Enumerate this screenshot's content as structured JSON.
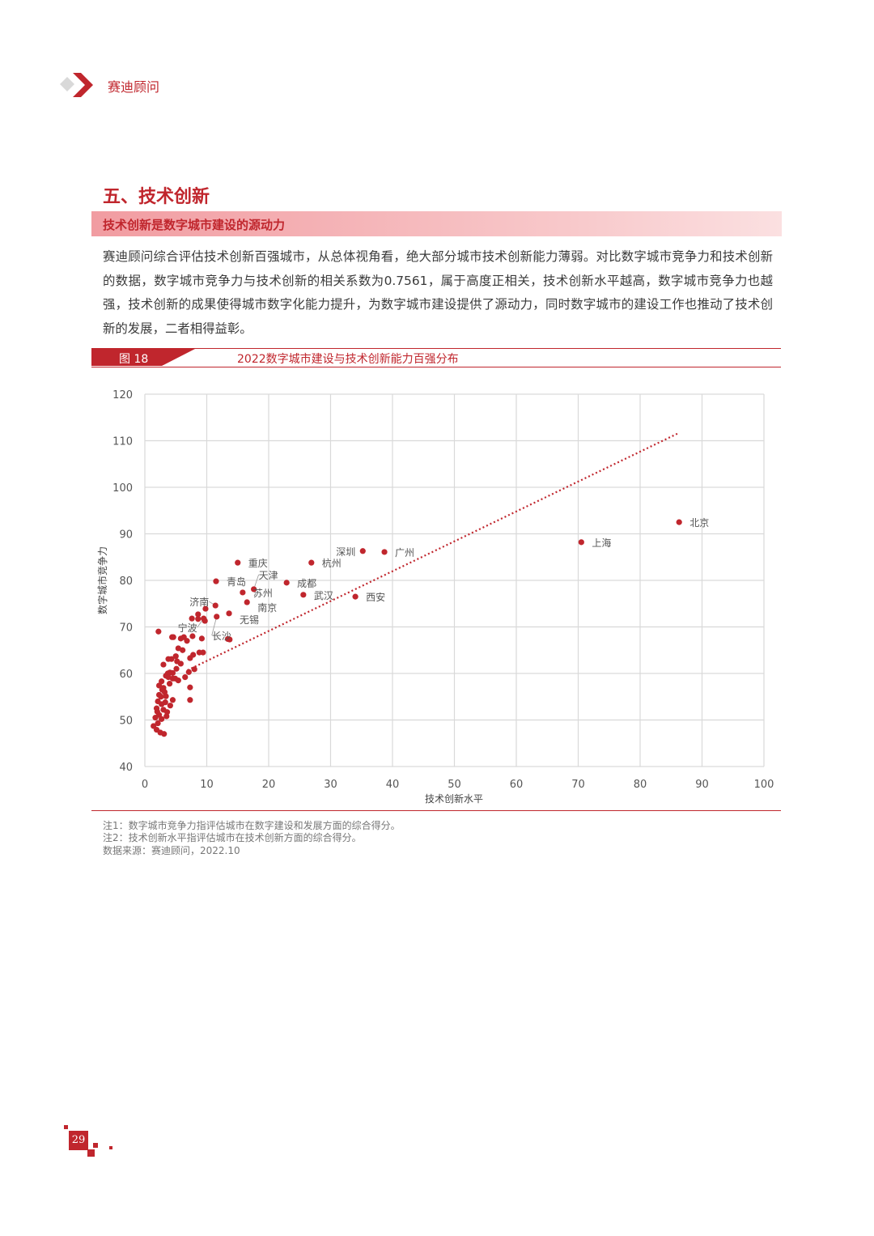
{
  "header": {
    "brand": "赛迪顾问"
  },
  "section": {
    "title": "五、技术创新",
    "subtitle": "技术创新是数字城市建设的源动力",
    "paragraph": "赛迪顾问综合评估技术创新百强城市，从总体视角看，绝大部分城市技术创新能力薄弱。对比数字城市竞争力和技术创新的数据，数字城市竞争力与技术创新的相关系数为0.7561，属于高度正相关，技术创新水平越高，数字城市竞争力也越强，技术创新的成果使得城市数字化能力提升，为数字城市建设提供了源动力，同时数字城市的建设工作也推动了技术创新的发展，二者相得益彰。"
  },
  "figure": {
    "number": "图 18",
    "title": "2022数字城市建设与技术创新能力百强分布"
  },
  "chart_data": {
    "type": "scatter",
    "title": "",
    "xlabel": "技术创新水平",
    "ylabel": "数字城市竞争力",
    "xlim": [
      0,
      100
    ],
    "ylim": [
      40,
      120
    ],
    "xticks": [
      "0",
      "10",
      "20",
      "30",
      "40",
      "50",
      "60",
      "70",
      "80",
      "90",
      "100"
    ],
    "yticks": [
      "40",
      "50",
      "60",
      "70",
      "80",
      "90",
      "100",
      "110",
      "120"
    ],
    "grid": true,
    "color": "#c0262d",
    "trendline": {
      "style": "dotted",
      "x": [
        6.9,
        86.3
      ],
      "y": [
        60.7,
        111.7
      ]
    },
    "labeled_points": [
      {
        "label": "北京",
        "x": 86.3,
        "y": 92.5
      },
      {
        "label": "上海",
        "x": 70.5,
        "y": 88.2
      },
      {
        "label": "深圳",
        "x": 35.2,
        "y": 86.3
      },
      {
        "label": "广州",
        "x": 38.7,
        "y": 86.1
      },
      {
        "label": "杭州",
        "x": 26.9,
        "y": 83.8
      },
      {
        "label": "重庆",
        "x": 15.0,
        "y": 83.8
      },
      {
        "label": "青岛",
        "x": 11.5,
        "y": 79.8
      },
      {
        "label": "成都",
        "x": 22.9,
        "y": 79.5
      },
      {
        "label": "天津",
        "x": 17.6,
        "y": 78.1
      },
      {
        "label": "苏州",
        "x": 15.8,
        "y": 77.4
      },
      {
        "label": "武汉",
        "x": 25.6,
        "y": 76.9
      },
      {
        "label": "西安",
        "x": 34.0,
        "y": 76.5
      },
      {
        "label": "南京",
        "x": 16.5,
        "y": 75.3
      },
      {
        "label": "济南",
        "x": 11.4,
        "y": 74.6
      },
      {
        "label": "无锡",
        "x": 13.6,
        "y": 72.9
      },
      {
        "label": "宁波",
        "x": 9.5,
        "y": 71.8
      },
      {
        "label": "长沙",
        "x": 11.6,
        "y": 72.2
      }
    ],
    "points": [
      [
        2.2,
        69.0
      ],
      [
        4.6,
        67.8
      ],
      [
        5.8,
        67.5
      ],
      [
        6.3,
        67.8
      ],
      [
        6.8,
        67.0
      ],
      [
        7.7,
        68.0
      ],
      [
        9.2,
        67.5
      ],
      [
        5.4,
        65.4
      ],
      [
        6.1,
        65.0
      ],
      [
        8.8,
        64.5
      ],
      [
        9.4,
        64.5
      ],
      [
        7.8,
        64.0
      ],
      [
        7.3,
        63.3
      ],
      [
        3.8,
        63.1
      ],
      [
        4.3,
        63.1
      ],
      [
        5.0,
        63.7
      ],
      [
        5.2,
        62.6
      ],
      [
        5.8,
        62.1
      ],
      [
        3.0,
        61.9
      ],
      [
        8.0,
        60.9
      ],
      [
        7.1,
        60.3
      ],
      [
        3.7,
        60.0
      ],
      [
        4.05,
        60.2
      ],
      [
        4.5,
        60.1
      ],
      [
        3.4,
        59.5
      ],
      [
        3.8,
        59.2
      ],
      [
        4.5,
        58.9
      ],
      [
        4.9,
        58.9
      ],
      [
        5.4,
        58.5
      ],
      [
        2.7,
        58.3
      ],
      [
        7.3,
        57.0
      ],
      [
        7.3,
        54.3
      ],
      [
        2.3,
        57.4
      ],
      [
        3.0,
        56.9
      ],
      [
        3.2,
        56.0
      ],
      [
        2.3,
        55.4
      ],
      [
        3.4,
        55.1
      ],
      [
        4.5,
        54.3
      ],
      [
        2.1,
        54.0
      ],
      [
        2.7,
        53.4
      ],
      [
        4.1,
        53.1
      ],
      [
        1.9,
        52.5
      ],
      [
        3.0,
        52.2
      ],
      [
        3.6,
        51.7
      ],
      [
        2.3,
        51.1
      ],
      [
        1.7,
        50.5
      ],
      [
        2.7,
        50.2
      ],
      [
        2.1,
        49.3
      ],
      [
        1.4,
        48.7
      ],
      [
        1.9,
        47.9
      ],
      [
        2.5,
        47.3
      ],
      [
        3.1,
        47.0
      ],
      [
        4.4,
        67.8
      ],
      [
        7.6,
        71.8
      ],
      [
        8.6,
        72.7
      ],
      [
        8.6,
        71.7
      ],
      [
        9.7,
        71.3
      ],
      [
        9.8,
        73.9
      ],
      [
        13.4,
        67.4
      ],
      [
        13.7,
        67.3
      ],
      [
        2.8,
        56.5
      ],
      [
        3.3,
        53.8
      ],
      [
        2.0,
        51.8
      ],
      [
        4.0,
        57.8
      ],
      [
        6.5,
        59.2
      ],
      [
        5.1,
        61.0
      ],
      [
        2.6,
        55.0
      ],
      [
        3.5,
        50.8
      ]
    ]
  },
  "notes": [
    "注1：数字城市竞争力指评估城市在数字建设和发展方面的综合得分。",
    "注2：技术创新水平指评估城市在技术创新方面的综合得分。",
    "数据来源：赛迪顾问，2022.10"
  ],
  "footer": {
    "page": "29"
  }
}
